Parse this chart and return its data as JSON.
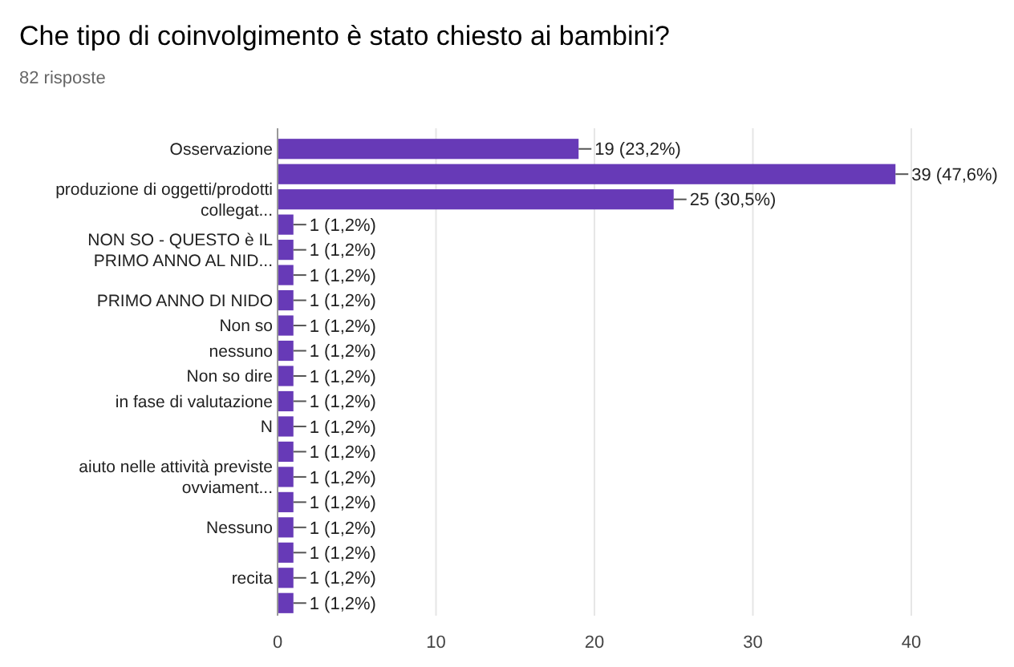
{
  "chart_data": {
    "type": "bar",
    "orientation": "horizontal",
    "title": "Che tipo di coinvolgimento è stato chiesto ai bambini?",
    "subtitle": "82 risposte",
    "categories": [
      "Osservazione",
      null,
      "produzione di oggetti/prodotti collegat...",
      null,
      "NON SO - QUESTO è IL PRIMO ANNO AL NID...",
      null,
      "PRIMO ANNO DI NIDO",
      "Non so",
      "nessuno",
      "Non so dire",
      "in fase di valutazione",
      "N",
      null,
      "aiuto nelle attività previste ovviament...",
      null,
      "Nessuno",
      null,
      "recita",
      null
    ],
    "values": [
      19,
      39,
      25,
      1,
      1,
      1,
      1,
      1,
      1,
      1,
      1,
      1,
      1,
      1,
      1,
      1,
      1,
      1,
      1
    ],
    "value_labels": [
      "19 (23,2%)",
      "39 (47,6%)",
      "25 (30,5%)",
      "1 (1,2%)",
      "1 (1,2%)",
      "1 (1,2%)",
      "1 (1,2%)",
      "1 (1,2%)",
      "1 (1,2%)",
      "1 (1,2%)",
      "1 (1,2%)",
      "1 (1,2%)",
      "1 (1,2%)",
      "1 (1,2%)",
      "1 (1,2%)",
      "1 (1,2%)",
      "1 (1,2%)",
      "1 (1,2%)",
      "1 (1,2%)"
    ],
    "color": "#673ab7",
    "xlim": [
      0,
      40
    ],
    "xticks": [
      0,
      10,
      20,
      30,
      40
    ],
    "grid": "x"
  }
}
